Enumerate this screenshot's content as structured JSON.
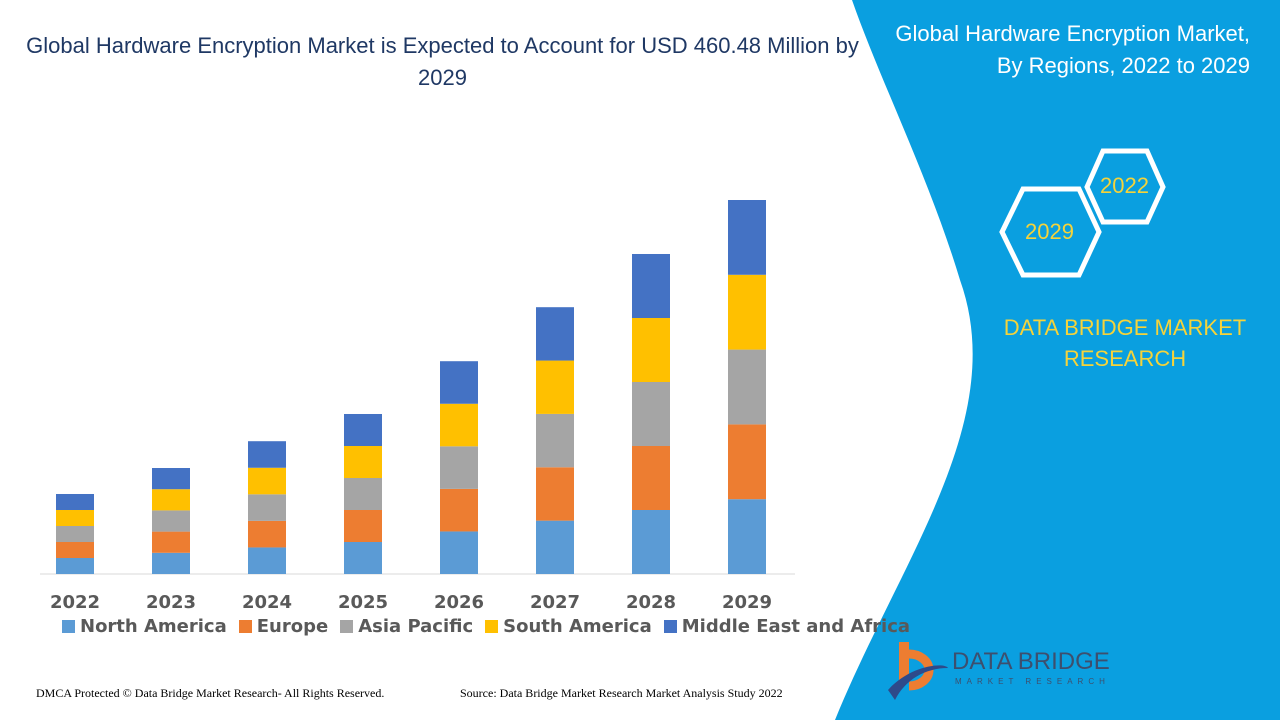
{
  "header": {
    "title": "Global Hardware Encryption Market is Expected to Account for USD 460.48 Million by 2029"
  },
  "side_panel": {
    "title": "Global Hardware Encryption Market, By Regions, 2022 to 2029",
    "hex_start": "2022",
    "hex_end": "2029",
    "brand_line1": "DATA BRIDGE MARKET",
    "brand_line2": "RESEARCH",
    "logo_name": "DATA BRIDGE",
    "logo_sub": "MARKET RESEARCH",
    "panel_color": "#0a9fe0"
  },
  "footer": {
    "left": "DMCA Protected © Data Bridge Market Research- All Rights Reserved.",
    "right": "Source: Data Bridge Market Research Market Analysis Study 2022"
  },
  "chart_data": {
    "type": "bar",
    "stacked": true,
    "title": "Global Hardware Encryption Market is Expected to Account for USD 460.48 Million by 2029",
    "xlabel": "",
    "ylabel": "",
    "grid": false,
    "legend_position": "bottom",
    "categories": [
      "2022",
      "2023",
      "2024",
      "2025",
      "2026",
      "2027",
      "2028",
      "2029"
    ],
    "series": [
      {
        "name": "North America",
        "color": "#5b9bd5",
        "values": [
          19.7,
          26.1,
          32.7,
          39.4,
          52.4,
          65.7,
          78.8,
          92.1
        ]
      },
      {
        "name": "Europe",
        "color": "#ed7d31",
        "values": [
          19.7,
          26.1,
          32.7,
          39.4,
          52.4,
          65.7,
          78.8,
          92.1
        ]
      },
      {
        "name": "Asia Pacific",
        "color": "#a5a5a5",
        "values": [
          19.7,
          26.1,
          32.7,
          39.4,
          52.4,
          65.7,
          78.8,
          92.1
        ]
      },
      {
        "name": "South America",
        "color": "#ffc000",
        "values": [
          19.7,
          26.1,
          32.7,
          39.4,
          52.4,
          65.7,
          78.8,
          92.1
        ]
      },
      {
        "name": "Middle East and Africa",
        "color": "#4472c4",
        "values": [
          19.7,
          26.1,
          32.7,
          39.4,
          52.4,
          65.7,
          78.8,
          92.08
        ]
      }
    ]
  }
}
